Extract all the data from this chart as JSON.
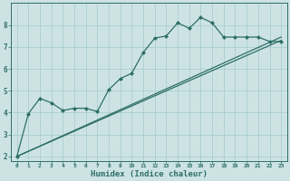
{
  "xlabel": "Humidex (Indice chaleur)",
  "xlim": [
    -0.5,
    23.5
  ],
  "ylim": [
    1.8,
    9.0
  ],
  "yticks": [
    2,
    3,
    4,
    5,
    6,
    7,
    8
  ],
  "xticks": [
    0,
    1,
    2,
    3,
    4,
    5,
    6,
    7,
    8,
    9,
    10,
    11,
    12,
    13,
    14,
    15,
    16,
    17,
    18,
    19,
    20,
    21,
    22,
    23
  ],
  "bg_color": "#cde3e3",
  "line_color": "#2e6e68",
  "grid_color": "#aacece",
  "line1": {
    "x": [
      0,
      1,
      2,
      3,
      4,
      5,
      6,
      7,
      8,
      9,
      10,
      11,
      12,
      13,
      14,
      15,
      16,
      17,
      18,
      19,
      20,
      21,
      22,
      23
    ],
    "y": [
      2.0,
      3.95,
      4.65,
      4.45,
      4.1,
      4.2,
      4.2,
      4.05,
      5.05,
      5.55,
      5.8,
      6.75,
      7.4,
      7.5,
      8.1,
      7.85,
      8.35,
      8.1,
      7.45,
      7.45,
      7.45,
      7.45,
      7.25,
      7.25
    ]
  },
  "line2": {
    "x": [
      0,
      23
    ],
    "y": [
      2.0,
      7.3
    ]
  },
  "line3": {
    "x": [
      0,
      23
    ],
    "y": [
      2.0,
      7.45
    ]
  }
}
